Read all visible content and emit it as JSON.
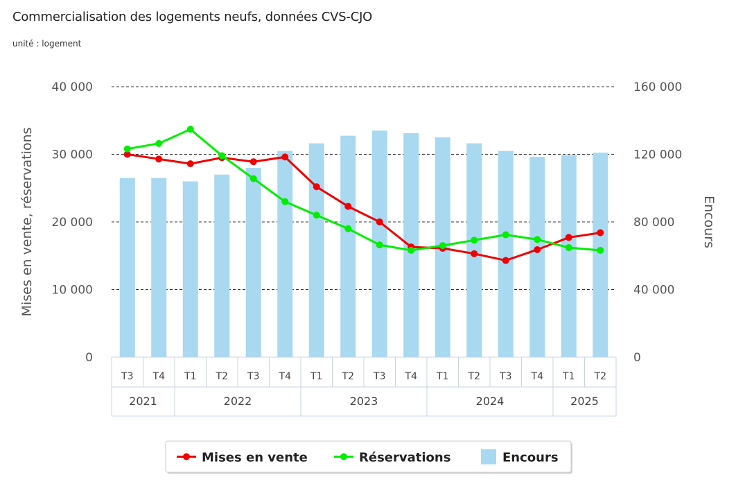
{
  "title": "Commercialisation des logements neufs, données CVS-CJO",
  "subtitle": "unité : logement",
  "colors": {
    "mises": "#ee0000",
    "reservations": "#00ee00",
    "encours": "#a8d9f0",
    "axis_text": "#555555",
    "grid": "#333333",
    "category_border": "#c8d4e3"
  },
  "chart_data": {
    "type": "bar",
    "categories": [
      "T3",
      "T4",
      "T1",
      "T2",
      "T3",
      "T4",
      "T1",
      "T2",
      "T3",
      "T4",
      "T1",
      "T2",
      "T3",
      "T4",
      "T1",
      "T2"
    ],
    "years": [
      {
        "label": "2021",
        "span": 2
      },
      {
        "label": "2022",
        "span": 4
      },
      {
        "label": "2023",
        "span": 4
      },
      {
        "label": "2024",
        "span": 4
      },
      {
        "label": "2025",
        "span": 2
      }
    ],
    "left_axis": {
      "title": "Mises en vente, réservations",
      "ticks": [
        "0",
        "10 000",
        "20 000",
        "30 000",
        "40 000"
      ],
      "ylim": [
        0,
        40000
      ]
    },
    "right_axis": {
      "title": "Encours",
      "ticks": [
        "0",
        "40 000",
        "80 000",
        "120 000",
        "160 000"
      ],
      "ylim": [
        0,
        160000
      ]
    },
    "series": [
      {
        "name": "Mises en vente",
        "type": "line",
        "axis": "left",
        "values": [
          30000,
          29300,
          28600,
          29500,
          28900,
          29600,
          25200,
          22300,
          20000,
          16300,
          16100,
          15300,
          14300,
          15900,
          17700,
          18400
        ]
      },
      {
        "name": "Réservations",
        "type": "line",
        "axis": "left",
        "values": [
          30800,
          31600,
          33700,
          29800,
          26400,
          23000,
          21000,
          19000,
          16600,
          15800,
          16500,
          17300,
          18100,
          17400,
          16200,
          15800
        ]
      },
      {
        "name": "Encours",
        "type": "bar",
        "axis": "right",
        "values": [
          106000,
          106000,
          104000,
          108000,
          112000,
          122000,
          126500,
          131000,
          134000,
          132500,
          130000,
          126500,
          122000,
          118500,
          119500,
          121000
        ]
      }
    ],
    "grid": "dashed horizontal",
    "legend": {
      "placement": "bottom-center",
      "items": [
        "Mises en vente",
        "Réservations",
        "Encours"
      ]
    }
  }
}
